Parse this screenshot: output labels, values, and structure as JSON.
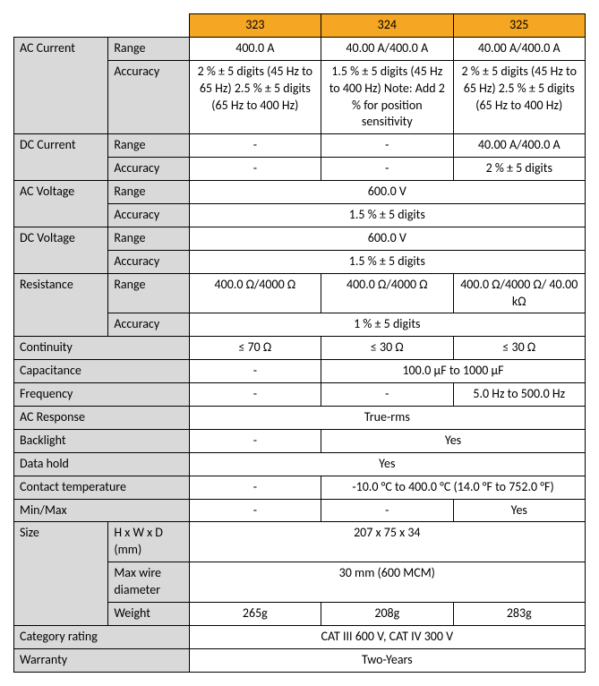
{
  "models": {
    "m323": "323",
    "m324": "324",
    "m325": "325"
  },
  "rows": {
    "ac_current": {
      "label": "AC Current",
      "range_label": "Range",
      "range": {
        "m323": "400.0 A",
        "m324": "40.00 A/400.0 A",
        "m325": "40.00 A/400.0 A"
      },
      "accuracy_label": "Accuracy",
      "accuracy": {
        "m323": "2 % ± 5 digits (45 Hz to 65 Hz) 2.5 % ± 5 digits (65 Hz to 400 Hz)",
        "m324": "1.5 % ± 5 digits (45 Hz to 400 Hz) Note: Add 2 % for position sensitivity",
        "m325": "2 % ± 5 digits (45 Hz to 65 Hz) 2.5 % ± 5 digits (65 Hz to 400 Hz)"
      }
    },
    "dc_current": {
      "label": "DC Current",
      "range_label": "Range",
      "range": {
        "m323": "-",
        "m324": "-",
        "m325": "40.00 A/400.0 A"
      },
      "accuracy_label": "Accuracy",
      "accuracy": {
        "m323": "-",
        "m324": "-",
        "m325": "2 % ± 5 digits"
      }
    },
    "ac_voltage": {
      "label": "AC Voltage",
      "range_label": "Range",
      "range_all": "600.0 V",
      "accuracy_label": "Accuracy",
      "accuracy_all": "1.5 % ± 5 digits"
    },
    "dc_voltage": {
      "label": "DC Voltage",
      "range_label": "Range",
      "range_all": "600.0 V",
      "accuracy_label": "Accuracy",
      "accuracy_all": "1.5 % ± 5 digits"
    },
    "resistance": {
      "label": "Resistance",
      "range_label": "Range",
      "range": {
        "m323": "400.0 Ω/4000 Ω",
        "m324": "400.0 Ω/4000 Ω",
        "m325": "400.0 Ω/4000 Ω/ 40.00 kΩ"
      },
      "accuracy_label": "Accuracy",
      "accuracy_all": "1 % ± 5 digits"
    },
    "continuity": {
      "label": "Continuity",
      "m323": "≤ 70 Ω",
      "m324": "≤ 30 Ω",
      "m325": "≤ 30 Ω"
    },
    "capacitance": {
      "label": "Capacitance",
      "m323": "-",
      "m324_325": "100.0 µF to 1000 µF"
    },
    "frequency": {
      "label": "Frequency",
      "m323": "-",
      "m324": "-",
      "m325": "5.0 Hz to 500.0 Hz"
    },
    "ac_response": {
      "label": "AC Response",
      "all": "True-rms"
    },
    "backlight": {
      "label": "Backlight",
      "m323": "-",
      "m324_325": "Yes"
    },
    "data_hold": {
      "label": "Data hold",
      "all": "Yes"
    },
    "contact_temp": {
      "label": "Contact temperature",
      "m323": "-",
      "m324_325": "-10.0 °C to 400.0 °C (14.0 °F to 752.0 °F)"
    },
    "min_max": {
      "label": "Min/Max",
      "m323": "-",
      "m324": "-",
      "m325": "Yes"
    },
    "size": {
      "label": "Size",
      "hwd_label": "H x W x D (mm)",
      "hwd_all": "207 x 75 x 34",
      "wire_label": "Max wire diameter",
      "wire_all": "30 mm (600 MCM)",
      "weight_label": "Weight",
      "weight": {
        "m323": "265g",
        "m324": "208g",
        "m325": "283g"
      }
    },
    "category": {
      "label": "Category rating",
      "all": "CAT III 600 V, CAT IV 300 V"
    },
    "warranty": {
      "label": "Warranty",
      "all": "Two-Years"
    }
  },
  "colors": {
    "header_bg": "#f5a623",
    "label_bg": "#d9d9d9",
    "border": "#000000"
  }
}
